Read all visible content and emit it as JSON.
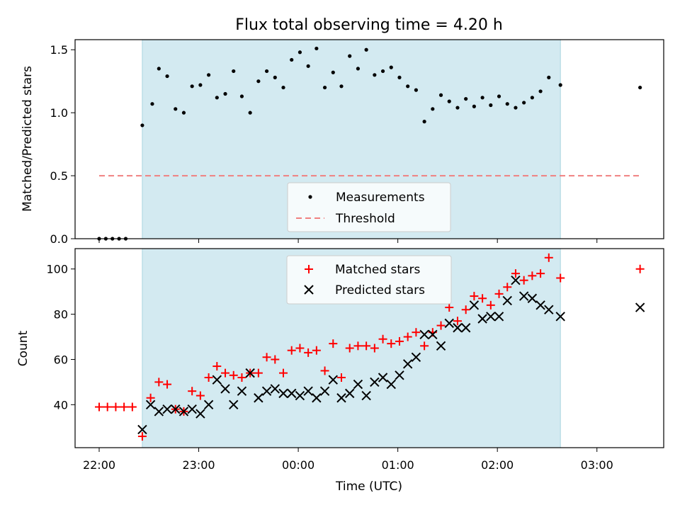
{
  "chart_data": {
    "type": "scatter",
    "title": "Flux total observing time = 4.20 h",
    "xlabel": "Time (UTC)",
    "x_ticks": [
      "22:00",
      "23:00",
      "00:00",
      "01:00",
      "02:00",
      "03:00"
    ],
    "observing_window": {
      "start": "22:26",
      "end": "02:38",
      "color": "#d3eaf1"
    },
    "panels": [
      {
        "ylabel": "Matched/Predicted stars",
        "ylim": [
          0,
          1.58
        ],
        "y_ticks": [
          0.0,
          0.5,
          1.0,
          1.5
        ],
        "y_tick_labels": [
          "0.0",
          "0.5",
          "1.0",
          "1.5"
        ],
        "legend": {
          "position": "lower-center"
        },
        "series": [
          {
            "name": "Measurements",
            "marker": "dot",
            "color": "#000000",
            "points": [
              [
                "22:00",
                0.0
              ],
              [
                "22:04",
                0.0
              ],
              [
                "22:08",
                0.0
              ],
              [
                "22:12",
                0.0
              ],
              [
                "22:16",
                0.0
              ],
              [
                "22:26",
                0.9
              ],
              [
                "22:32",
                1.07
              ],
              [
                "22:36",
                1.35
              ],
              [
                "22:41",
                1.29
              ],
              [
                "22:46",
                1.03
              ],
              [
                "22:51",
                1.0
              ],
              [
                "22:56",
                1.21
              ],
              [
                "23:01",
                1.22
              ],
              [
                "23:06",
                1.3
              ],
              [
                "23:11",
                1.12
              ],
              [
                "23:16",
                1.15
              ],
              [
                "23:21",
                1.33
              ],
              [
                "23:26",
                1.13
              ],
              [
                "23:31",
                1.0
              ],
              [
                "23:36",
                1.25
              ],
              [
                "23:41",
                1.33
              ],
              [
                "23:46",
                1.28
              ],
              [
                "23:51",
                1.2
              ],
              [
                "23:56",
                1.42
              ],
              [
                "00:01",
                1.48
              ],
              [
                "00:06",
                1.37
              ],
              [
                "00:11",
                1.51
              ],
              [
                "00:16",
                1.2
              ],
              [
                "00:21",
                1.32
              ],
              [
                "00:26",
                1.21
              ],
              [
                "00:31",
                1.45
              ],
              [
                "00:36",
                1.35
              ],
              [
                "00:41",
                1.5
              ],
              [
                "00:46",
                1.3
              ],
              [
                "00:51",
                1.33
              ],
              [
                "00:56",
                1.36
              ],
              [
                "01:01",
                1.28
              ],
              [
                "01:06",
                1.21
              ],
              [
                "01:11",
                1.18
              ],
              [
                "01:16",
                0.93
              ],
              [
                "01:21",
                1.03
              ],
              [
                "01:26",
                1.14
              ],
              [
                "01:31",
                1.09
              ],
              [
                "01:36",
                1.04
              ],
              [
                "01:41",
                1.11
              ],
              [
                "01:46",
                1.05
              ],
              [
                "01:51",
                1.12
              ],
              [
                "01:56",
                1.06
              ],
              [
                "02:01",
                1.13
              ],
              [
                "02:06",
                1.07
              ],
              [
                "02:11",
                1.04
              ],
              [
                "02:16",
                1.08
              ],
              [
                "02:21",
                1.12
              ],
              [
                "02:26",
                1.17
              ],
              [
                "02:31",
                1.28
              ],
              [
                "02:38",
                1.22
              ],
              [
                "03:26",
                1.2
              ]
            ]
          },
          {
            "name": "Threshold",
            "marker": "dashed-line",
            "color": "#f08080",
            "points": [
              [
                "22:00",
                0.5
              ],
              [
                "03:26",
                0.5
              ]
            ]
          }
        ]
      },
      {
        "ylabel": "Count",
        "ylim": [
          21,
          109
        ],
        "y_ticks": [
          40,
          60,
          80,
          100
        ],
        "y_tick_labels": [
          "40",
          "60",
          "80",
          "100"
        ],
        "legend": {
          "position": "upper-center"
        },
        "series": [
          {
            "name": "Matched stars",
            "marker": "plus",
            "color": "#ff0000",
            "points": [
              [
                "22:00",
                39
              ],
              [
                "22:05",
                39
              ],
              [
                "22:10",
                39
              ],
              [
                "22:15",
                39
              ],
              [
                "22:20",
                39
              ],
              [
                "22:26",
                26
              ],
              [
                "22:31",
                43
              ],
              [
                "22:36",
                50
              ],
              [
                "22:41",
                49
              ],
              [
                "22:46",
                38
              ],
              [
                "22:51",
                37
              ],
              [
                "22:56",
                46
              ],
              [
                "23:01",
                44
              ],
              [
                "23:06",
                52
              ],
              [
                "23:11",
                57
              ],
              [
                "23:16",
                54
              ],
              [
                "23:21",
                53
              ],
              [
                "23:26",
                52
              ],
              [
                "23:31",
                54
              ],
              [
                "23:36",
                54
              ],
              [
                "23:41",
                61
              ],
              [
                "23:46",
                60
              ],
              [
                "23:51",
                54
              ],
              [
                "23:56",
                64
              ],
              [
                "00:01",
                65
              ],
              [
                "00:06",
                63
              ],
              [
                "00:11",
                64
              ],
              [
                "00:16",
                55
              ],
              [
                "00:21",
                67
              ],
              [
                "00:26",
                52
              ],
              [
                "00:31",
                65
              ],
              [
                "00:36",
                66
              ],
              [
                "00:41",
                66
              ],
              [
                "00:46",
                65
              ],
              [
                "00:51",
                69
              ],
              [
                "00:56",
                67
              ],
              [
                "01:01",
                68
              ],
              [
                "01:06",
                70
              ],
              [
                "01:11",
                72
              ],
              [
                "01:16",
                66
              ],
              [
                "01:21",
                72
              ],
              [
                "01:26",
                75
              ],
              [
                "01:31",
                83
              ],
              [
                "01:36",
                77
              ],
              [
                "01:41",
                82
              ],
              [
                "01:46",
                88
              ],
              [
                "01:51",
                87
              ],
              [
                "01:56",
                84
              ],
              [
                "02:01",
                89
              ],
              [
                "02:06",
                92
              ],
              [
                "02:11",
                98
              ],
              [
                "02:16",
                95
              ],
              [
                "02:21",
                97
              ],
              [
                "02:26",
                98
              ],
              [
                "02:31",
                105
              ],
              [
                "02:38",
                96
              ],
              [
                "03:26",
                100
              ]
            ]
          },
          {
            "name": "Predicted stars",
            "marker": "x",
            "color": "#000000",
            "points": [
              [
                "22:26",
                29
              ],
              [
                "22:31",
                40
              ],
              [
                "22:36",
                37
              ],
              [
                "22:41",
                38
              ],
              [
                "22:46",
                38
              ],
              [
                "22:51",
                37
              ],
              [
                "22:56",
                38
              ],
              [
                "23:01",
                36
              ],
              [
                "23:06",
                40
              ],
              [
                "23:11",
                51
              ],
              [
                "23:16",
                47
              ],
              [
                "23:21",
                40
              ],
              [
                "23:26",
                46
              ],
              [
                "23:31",
                54
              ],
              [
                "23:36",
                43
              ],
              [
                "23:41",
                46
              ],
              [
                "23:46",
                47
              ],
              [
                "23:51",
                45
              ],
              [
                "23:56",
                45
              ],
              [
                "00:01",
                44
              ],
              [
                "00:06",
                46
              ],
              [
                "00:11",
                43
              ],
              [
                "00:16",
                46
              ],
              [
                "00:21",
                51
              ],
              [
                "00:26",
                43
              ],
              [
                "00:31",
                45
              ],
              [
                "00:36",
                49
              ],
              [
                "00:41",
                44
              ],
              [
                "00:46",
                50
              ],
              [
                "00:51",
                52
              ],
              [
                "00:56",
                49
              ],
              [
                "01:01",
                53
              ],
              [
                "01:06",
                58
              ],
              [
                "01:11",
                61
              ],
              [
                "01:16",
                71
              ],
              [
                "01:21",
                71
              ],
              [
                "01:26",
                66
              ],
              [
                "01:31",
                76
              ],
              [
                "01:36",
                74
              ],
              [
                "01:41",
                74
              ],
              [
                "01:46",
                84
              ],
              [
                "01:51",
                78
              ],
              [
                "01:56",
                79
              ],
              [
                "02:01",
                79
              ],
              [
                "02:06",
                86
              ],
              [
                "02:11",
                95
              ],
              [
                "02:16",
                88
              ],
              [
                "02:21",
                87
              ],
              [
                "02:26",
                84
              ],
              [
                "02:31",
                82
              ],
              [
                "02:38",
                79
              ],
              [
                "03:26",
                83
              ]
            ]
          }
        ]
      }
    ]
  }
}
